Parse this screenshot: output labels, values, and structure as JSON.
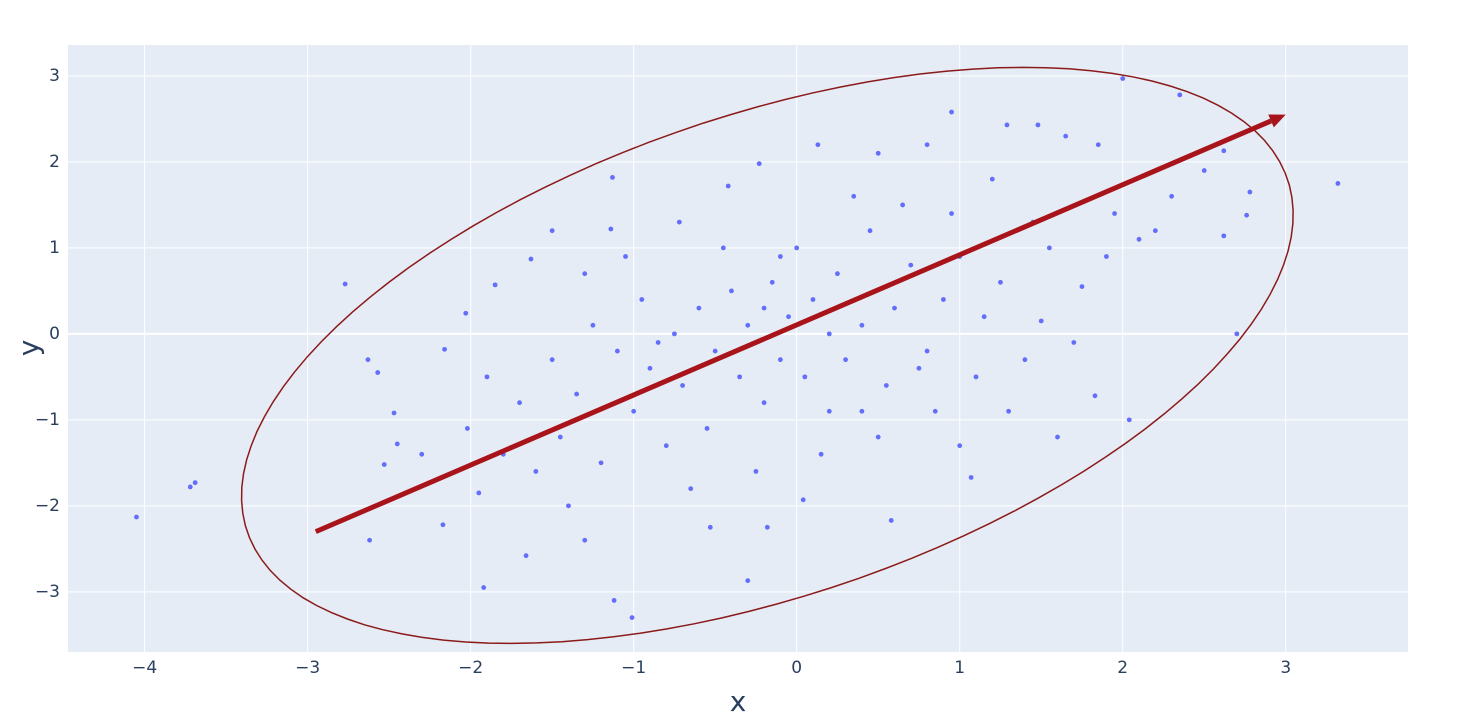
{
  "chart_data": {
    "type": "scatter",
    "x_label": "x",
    "y_label": "y",
    "xlim": [
      -4.47,
      3.75
    ],
    "ylim": [
      -3.7,
      3.36
    ],
    "xticks": [
      {
        "value": -4,
        "label": "−4"
      },
      {
        "value": -3,
        "label": "−3"
      },
      {
        "value": -2,
        "label": "−2"
      },
      {
        "value": -1,
        "label": "−1"
      },
      0,
      1,
      2,
      3
    ],
    "yticks": [
      {
        "value": -3,
        "label": "−3"
      },
      {
        "value": -2,
        "label": "−2"
      },
      {
        "value": -1,
        "label": "−1"
      },
      0,
      1,
      2,
      3
    ],
    "grid": true,
    "color": "#636efa",
    "x": [
      -4.05,
      -3.72,
      -3.69,
      -2.77,
      -2.62,
      -2.63,
      3.32,
      2.0,
      2.35,
      2.7,
      -1.92,
      -1.01,
      -1.12,
      -0.3,
      0.95,
      2.78,
      2.76,
      2.62,
      2.62,
      2.04,
      1.6,
      1.83,
      -2.57,
      -2.45,
      -2.47,
      -2.53,
      -2.16,
      -2.17,
      -2.02,
      -2.03,
      -1.85,
      -1.66,
      -1.3,
      -0.53,
      -0.18,
      0.58,
      0.04,
      1.07,
      0.13,
      -0.42,
      -0.23,
      0.8,
      1.29,
      1.48,
      1.65,
      1.85,
      0.5,
      -1.13,
      -1.14,
      -1.5,
      -1.63,
      -0.72,
      2.1,
      2.2,
      1.9,
      1.75,
      1.7,
      1.5,
      1.4,
      1.25,
      1.1,
      1.0,
      0.9,
      0.8,
      0.7,
      0.6,
      0.55,
      0.45,
      0.4,
      0.3,
      0.25,
      0.2,
      0.1,
      0.05,
      0.0,
      -0.05,
      -0.1,
      -0.15,
      -0.2,
      -0.3,
      -0.35,
      -0.4,
      -0.5,
      -0.55,
      -0.6,
      -0.7,
      -0.75,
      -0.8,
      -0.9,
      -0.95,
      -1.0,
      -1.1,
      -1.2,
      -1.25,
      -1.35,
      -1.45,
      -1.5,
      -1.6,
      -1.7,
      -1.8,
      -1.9,
      0.35,
      0.65,
      1.2,
      1.55,
      0.15,
      0.5,
      0.85,
      -0.25,
      -0.65,
      1.3,
      1.0,
      -1.05,
      -0.45,
      0.75,
      1.15,
      0.2,
      -0.1,
      0.95,
      -1.3,
      1.45,
      -0.85,
      2.3,
      1.95,
      2.5,
      -2.3,
      -1.95,
      -1.4,
      0.4,
      -0.2
    ],
    "y": [
      -2.13,
      -1.78,
      -1.73,
      0.58,
      -2.4,
      -0.3,
      1.75,
      2.97,
      2.78,
      0.0,
      -2.95,
      -3.3,
      -3.1,
      -2.87,
      2.58,
      1.65,
      1.38,
      1.14,
      2.13,
      -1.0,
      -1.2,
      -0.72,
      -0.45,
      -1.28,
      -0.92,
      -1.52,
      -0.18,
      -2.22,
      -1.1,
      0.24,
      0.57,
      -2.58,
      -2.4,
      -2.25,
      -2.25,
      -2.17,
      -1.93,
      -1.67,
      2.2,
      1.72,
      1.98,
      2.2,
      2.43,
      2.43,
      2.3,
      2.2,
      2.1,
      1.82,
      1.22,
      1.2,
      0.87,
      1.3,
      1.1,
      1.2,
      0.9,
      0.55,
      -0.1,
      0.15,
      -0.3,
      0.6,
      -0.5,
      0.9,
      0.4,
      -0.2,
      0.8,
      0.3,
      -0.6,
      1.2,
      0.1,
      -0.3,
      0.7,
      -0.9,
      0.4,
      -0.5,
      1.0,
      0.2,
      -0.3,
      0.6,
      -0.8,
      0.1,
      -0.5,
      0.5,
      -0.2,
      -1.1,
      0.3,
      -0.6,
      0.0,
      -1.3,
      -0.4,
      0.4,
      -0.9,
      -0.2,
      -1.5,
      0.1,
      -0.7,
      -1.2,
      -0.3,
      -1.6,
      -0.8,
      -1.4,
      -0.5,
      1.6,
      1.5,
      1.8,
      1.0,
      -1.4,
      -1.2,
      -0.9,
      -1.6,
      -1.8,
      -0.9,
      -1.3,
      0.9,
      1.0,
      -0.4,
      0.2,
      0.0,
      0.9,
      1.4,
      0.7,
      1.3,
      -0.1,
      1.6,
      1.4,
      1.9,
      -1.4,
      -1.85,
      -2.0,
      -0.9,
      0.3
    ],
    "arrow": {
      "x0": -2.95,
      "y0": -2.3,
      "x1": 3.0,
      "y1": 2.55,
      "color": "#a8141a"
    },
    "ellipse": {
      "center": [
        -0.18,
        -0.25
      ],
      "u": [
        3.05,
        2.5
      ],
      "v": [
        -1.05,
        2.23
      ],
      "color": "#8b1a1a"
    }
  }
}
